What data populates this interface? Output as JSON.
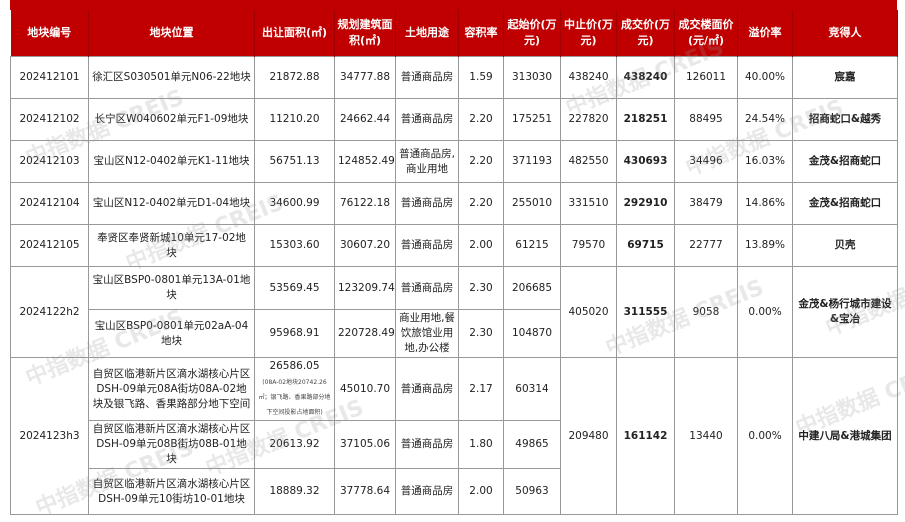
{
  "headers": [
    "地块编号",
    "地块位置",
    "出让面积(㎡)",
    "规划建筑面积(㎡)",
    "土地用途",
    "容积率",
    "起始价(万元)",
    "中止价(万元)",
    "成交价(万元)",
    "成交楼面价(元/㎡)",
    "溢价率",
    "竞得人"
  ],
  "rows": [
    {
      "id": "202412101",
      "loc": "徐汇区S030501单元N06-22地块",
      "area": "21872.88",
      "build": "34777.88",
      "use": "普通商品房",
      "far": "1.59",
      "start": "313030",
      "stop": "438240",
      "deal": "438240",
      "floor": "126011",
      "prem": "40.00%",
      "winner": "宸嘉"
    },
    {
      "id": "202412102",
      "loc": "长宁区W040602单元F1-09地块",
      "area": "11210.20",
      "build": "24662.44",
      "use": "普通商品房",
      "far": "2.20",
      "start": "175251",
      "stop": "227820",
      "deal": "218251",
      "floor": "88495",
      "prem": "24.54%",
      "winner": "招商蛇口&越秀"
    },
    {
      "id": "202412103",
      "loc": "宝山区N12-0402单元K1-11地块",
      "area": "56751.13",
      "build": "124852.49",
      "use": "普通商品房,商业用地",
      "far": "2.20",
      "start": "371193",
      "stop": "482550",
      "deal": "430693",
      "floor": "34496",
      "prem": "16.03%",
      "winner": "金茂&招商蛇口"
    },
    {
      "id": "202412104",
      "loc": "宝山区N12-0402单元D1-04地块",
      "area": "34600.99",
      "build": "76122.18",
      "use": "普通商品房",
      "far": "2.20",
      "start": "255010",
      "stop": "331510",
      "deal": "292910",
      "floor": "38479",
      "prem": "14.86%",
      "winner": "金茂&招商蛇口"
    },
    {
      "id": "202412105",
      "loc": "奉贤区奉贤新城10单元17-02地块",
      "area": "15303.60",
      "build": "30607.20",
      "use": "普通商品房",
      "far": "2.00",
      "start": "61215",
      "stop": "79570",
      "deal": "69715",
      "floor": "22777",
      "prem": "13.89%",
      "winner": "贝壳"
    }
  ],
  "group1": {
    "id": "2024122h2",
    "stop": "405020",
    "deal": "311555",
    "floor": "9058",
    "prem": "0.00%",
    "winner": "金茂&杨行城市建设&宝冶",
    "subs": [
      {
        "loc": "宝山区BSP0-0801单元13A-01地块",
        "area": "53569.45",
        "build": "123209.74",
        "use": "普通商品房",
        "far": "2.30",
        "start": "206685"
      },
      {
        "loc": "宝山区BSP0-0801单元02aA-04地块",
        "area": "95968.91",
        "build": "220728.49",
        "use": "商业用地,餐饮旅馆业用地,办公楼",
        "far": "2.30",
        "start": "104870"
      }
    ]
  },
  "group2": {
    "id": "2024123h3",
    "stop": "209480",
    "deal": "161142",
    "floor": "13440",
    "prem": "0.00%",
    "winner": "中建八局&港城集团",
    "subs": [
      {
        "loc": "自贸区临港新片区滴水湖核心片区DSH-09单元08A街坊08A-02地块及银飞路、香果路部分地下空间",
        "area": "26586.05",
        "area_note": "(08A-02地块20742.26㎡；银飞路、香果路部分地下空间投影占地面积)",
        "build": "45010.70",
        "use": "普通商品房",
        "far": "2.17",
        "start": "60314"
      },
      {
        "loc": "自贸区临港新片区滴水湖核心片区DSH-09单元08B街坊08B-01地块",
        "area": "20613.92",
        "build": "37105.06",
        "use": "普通商品房",
        "far": "1.80",
        "start": "49865"
      },
      {
        "loc": "自贸区临港新片区滴水湖核心片区DSH-09单元10街坊10-01地块",
        "area": "18889.32",
        "build": "37778.64",
        "use": "普通商品房",
        "far": "2.00",
        "start": "50963"
      }
    ]
  },
  "watermark": "中指数据 CREIS",
  "colors": {
    "header": "#c00000"
  }
}
